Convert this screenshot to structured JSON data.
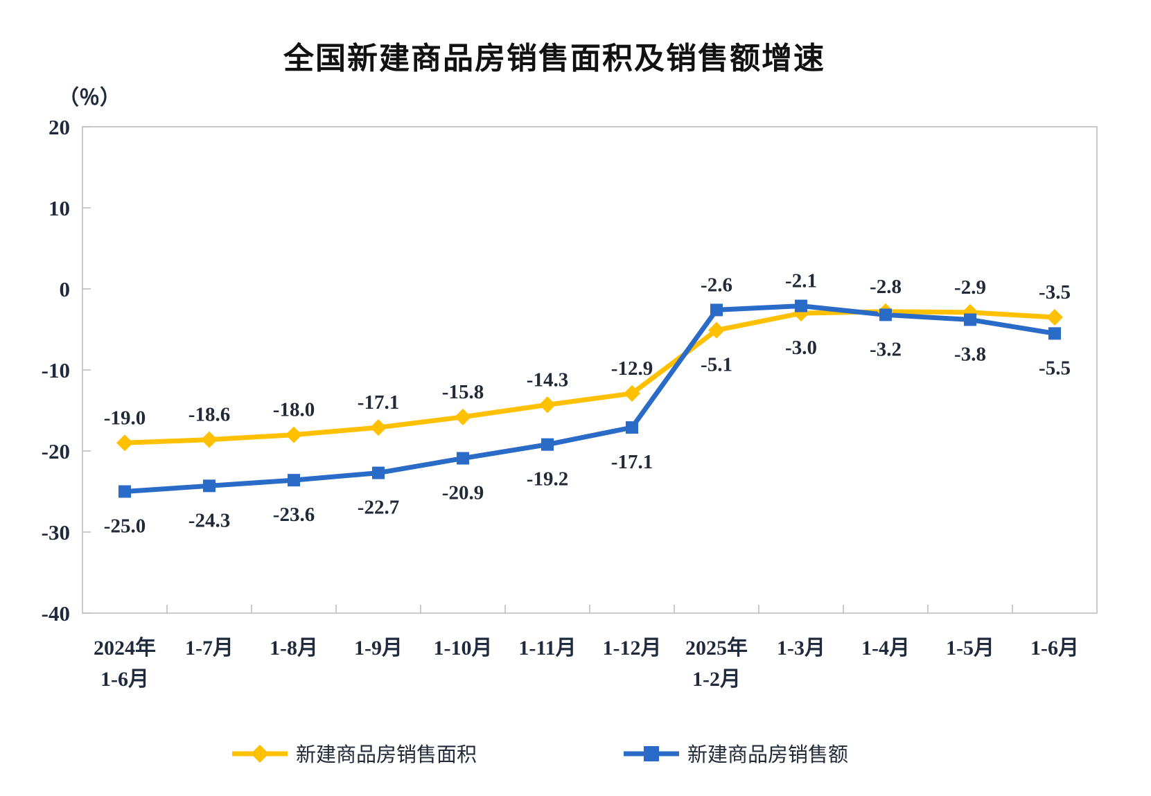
{
  "chart": {
    "unit_label": "（％）"
  },
  "chart_data": {
    "type": "line",
    "title": "全国新建商品房销售面积及销售额增速",
    "ylabel": "（％）",
    "unit": "%",
    "categories": [
      [
        "2024年",
        "1-6月"
      ],
      [
        "1-7月"
      ],
      [
        "1-8月"
      ],
      [
        "1-9月"
      ],
      [
        "1-10月"
      ],
      [
        "1-11月"
      ],
      [
        "1-12月"
      ],
      [
        "2025年",
        "1-2月"
      ],
      [
        "1-3月"
      ],
      [
        "1-4月"
      ],
      [
        "1-5月"
      ],
      [
        "1-6月"
      ]
    ],
    "series": [
      {
        "name": "新建商品房销售面积",
        "color": "#FFC000",
        "marker": "diamond",
        "values": [
          -19.0,
          -18.6,
          -18.0,
          -17.1,
          -15.8,
          -14.3,
          -12.9,
          -5.1,
          -3.0,
          -2.8,
          -2.9,
          -3.5
        ],
        "label_positions": [
          "above",
          "above",
          "above",
          "above",
          "above",
          "above",
          "above",
          "below",
          "below",
          "above",
          "above",
          "above"
        ]
      },
      {
        "name": "新建商品房销售额",
        "color": "#2B6BC8",
        "marker": "square",
        "values": [
          -25.0,
          -24.3,
          -23.6,
          -22.7,
          -20.9,
          -19.2,
          -17.1,
          -2.6,
          -2.1,
          -3.2,
          -3.8,
          -5.5
        ],
        "label_positions": [
          "below",
          "below",
          "below",
          "below",
          "below",
          "below",
          "below",
          "above",
          "above",
          "below",
          "below",
          "below"
        ]
      }
    ],
    "y_axis": {
      "min": -40,
      "max": 20,
      "step": 10,
      "ticks": [
        20,
        10,
        0,
        -10,
        -20,
        -30,
        -40
      ]
    },
    "grid": false,
    "legend_position": "bottom"
  },
  "style": {
    "axis_color": "#b9b9b9",
    "text_color": "#1f2a3d",
    "label_color": "#212a38",
    "title_color": "#111111",
    "background": "#ffffff"
  }
}
